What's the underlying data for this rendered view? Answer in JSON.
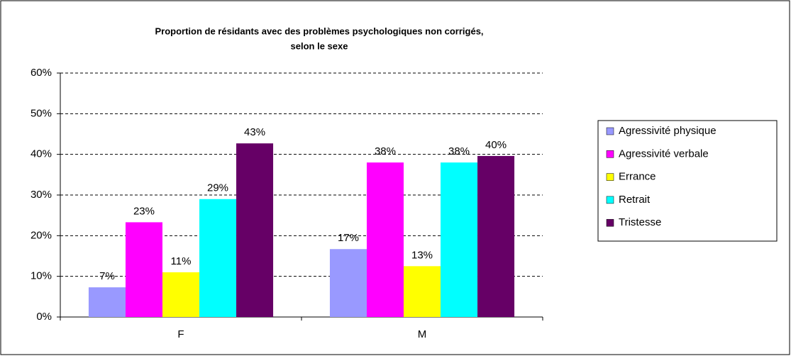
{
  "chart_data": {
    "type": "bar",
    "title": [
      "Proportion de résidants avec des problèmes psychologiques non corrigés,",
      "selon le sexe"
    ],
    "categories": [
      "F",
      "M"
    ],
    "series": [
      {
        "name": "Agressivité physique",
        "color": "#9999ff",
        "values": [
          7.3,
          16.7
        ],
        "value_labels": [
          "7%",
          "17%"
        ]
      },
      {
        "name": "Agressivité verbale",
        "color": "#ff00ff",
        "values": [
          23.3,
          38
        ],
        "value_labels": [
          "23%",
          "38%"
        ]
      },
      {
        "name": "Errance",
        "color": "#ffff00",
        "values": [
          11,
          12.5
        ],
        "value_labels": [
          "11%",
          "13%"
        ]
      },
      {
        "name": "Retrait",
        "color": "#00ffff",
        "values": [
          29,
          38
        ],
        "value_labels": [
          "29%",
          "38%"
        ]
      },
      {
        "name": "Tristesse",
        "color": "#660066",
        "values": [
          42.7,
          39.6
        ],
        "value_labels": [
          "43%",
          "40%"
        ]
      }
    ],
    "ylim": [
      0,
      60
    ],
    "yticks": [
      {
        "value": 0,
        "label": "0%"
      },
      {
        "value": 10,
        "label": "10%"
      },
      {
        "value": 20,
        "label": "20%"
      },
      {
        "value": 30,
        "label": "30%"
      },
      {
        "value": 40,
        "label": "40%"
      },
      {
        "value": 50,
        "label": "50%"
      },
      {
        "value": 60,
        "label": "60%"
      }
    ],
    "grid": true,
    "legend": "right"
  }
}
